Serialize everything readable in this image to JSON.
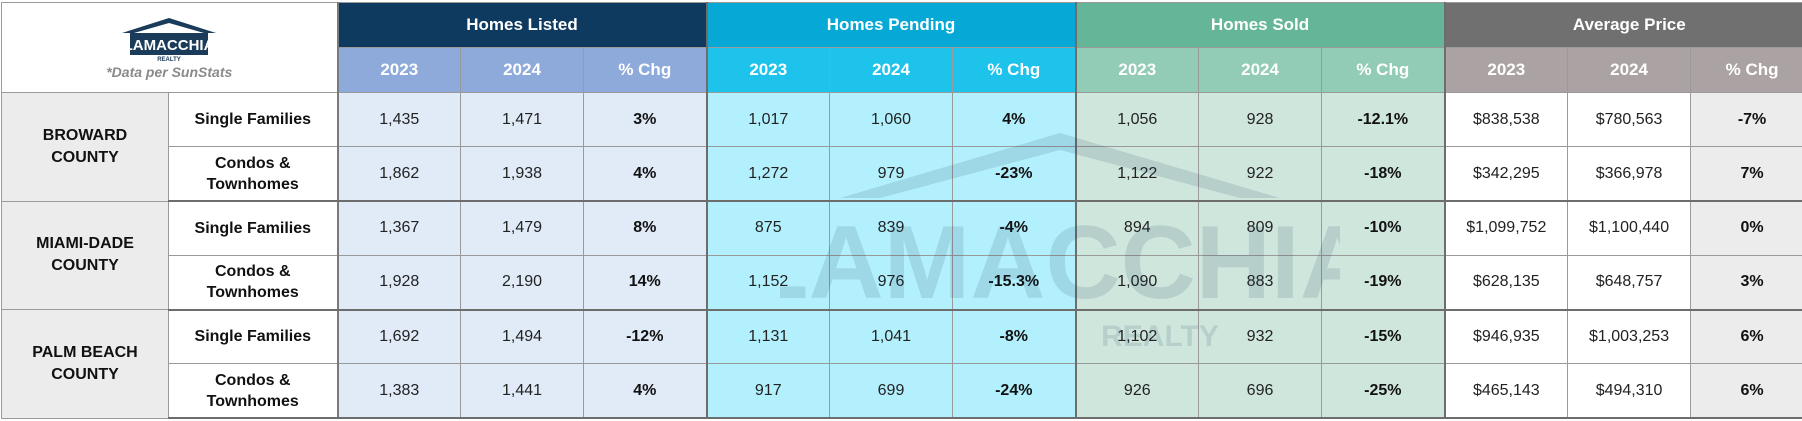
{
  "logo": {
    "brand": "LAMACCHIA",
    "sub": "REALTY",
    "note": "*Data per SunStats"
  },
  "groups": [
    "Homes Listed",
    "Homes Pending",
    "Homes Sold",
    "Average Price"
  ],
  "subheaders": [
    "2023",
    "2024",
    "% Chg"
  ],
  "counties": [
    {
      "name_line1": "BROWARD",
      "name_line2": "COUNTY",
      "rows": [
        {
          "type_line1": "Single Families",
          "type_line2": "",
          "listed": [
            "1,435",
            "1,471",
            "3%"
          ],
          "pending": [
            "1,017",
            "1,060",
            "4%"
          ],
          "sold": [
            "1,056",
            "928",
            "-12.1%"
          ],
          "price": [
            "$838,538",
            "$780,563",
            "-7%"
          ]
        },
        {
          "type_line1": "Condos &",
          "type_line2": "Townhomes",
          "listed": [
            "1,862",
            "1,938",
            "4%"
          ],
          "pending": [
            "1,272",
            "979",
            "-23%"
          ],
          "sold": [
            "1,122",
            "922",
            "-18%"
          ],
          "price": [
            "$342,295",
            "$366,978",
            "7%"
          ]
        }
      ]
    },
    {
      "name_line1": "MIAMI-DADE",
      "name_line2": "COUNTY",
      "rows": [
        {
          "type_line1": "Single Families",
          "type_line2": "",
          "listed": [
            "1,367",
            "1,479",
            "8%"
          ],
          "pending": [
            "875",
            "839",
            "-4%"
          ],
          "sold": [
            "894",
            "809",
            "-10%"
          ],
          "price": [
            "$1,099,752",
            "$1,100,440",
            "0%"
          ]
        },
        {
          "type_line1": "Condos &",
          "type_line2": "Townhomes",
          "listed": [
            "1,928",
            "2,190",
            "14%"
          ],
          "pending": [
            "1,152",
            "976",
            "-15.3%"
          ],
          "sold": [
            "1,090",
            "883",
            "-19%"
          ],
          "price": [
            "$628,135",
            "$648,757",
            "3%"
          ]
        }
      ]
    },
    {
      "name_line1": "PALM BEACH",
      "name_line2": "COUNTY",
      "rows": [
        {
          "type_line1": "Single Families",
          "type_line2": "",
          "listed": [
            "1,692",
            "1,494",
            "-12%"
          ],
          "pending": [
            "1,131",
            "1,041",
            "-8%"
          ],
          "sold": [
            "1,102",
            "932",
            "-15%"
          ],
          "price": [
            "$946,935",
            "$1,003,253",
            "6%"
          ]
        },
        {
          "type_line1": "Condos &",
          "type_line2": "Townhomes",
          "listed": [
            "1,383",
            "1,441",
            "4%"
          ],
          "pending": [
            "917",
            "699",
            "-24%"
          ],
          "sold": [
            "926",
            "696",
            "-25%"
          ],
          "price": [
            "$465,143",
            "$494,310",
            "6%"
          ]
        }
      ]
    }
  ],
  "colors": {
    "listed_header": "#0d3a5e",
    "pending_header": "#06a8d6",
    "sold_header": "#65b598",
    "price_header": "#707070"
  }
}
